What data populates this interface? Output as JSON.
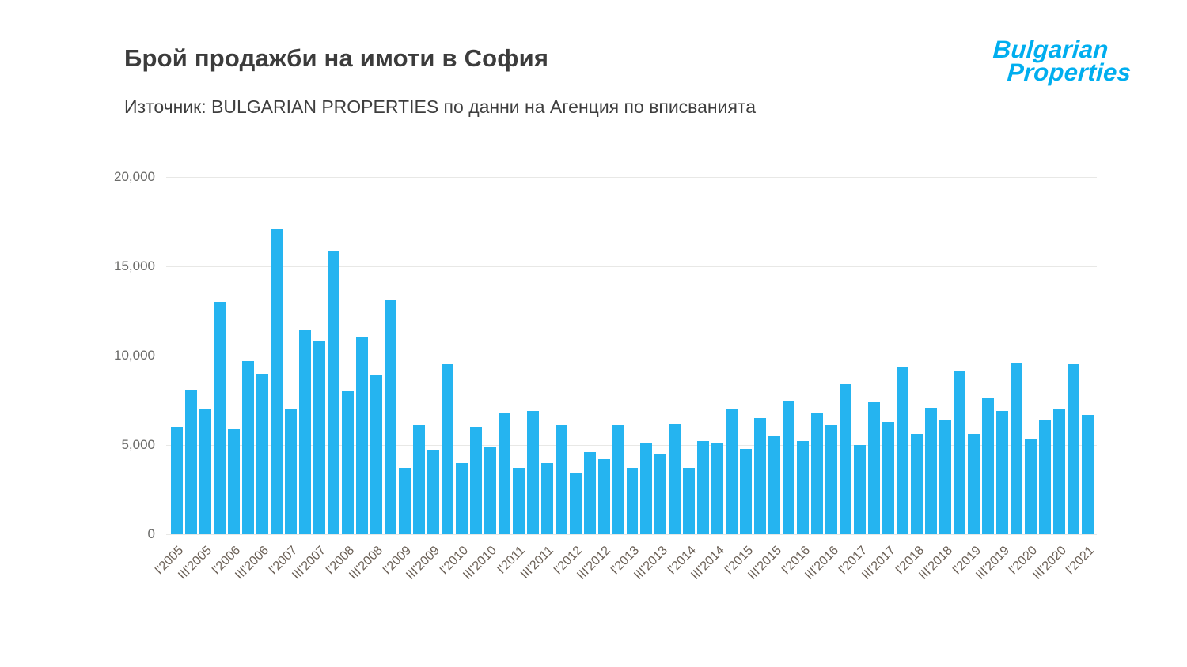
{
  "header": {
    "title": "Брой продажби на имоти в София",
    "subtitle": "Източник: BULGARIAN PROPERTIES по данни на Агенция по вписванията"
  },
  "logo": {
    "line1": "Bulgarian",
    "line2": "Properties"
  },
  "colors": {
    "bar": "#25b4f0",
    "grid": "#e8e8e6",
    "axis_text": "#6b6056",
    "title": "#3c3c3c",
    "logo_blue": "#00aeef"
  },
  "chart_data": {
    "type": "bar",
    "title": "Брой продажби на имоти в София",
    "xlabel": "",
    "ylabel": "",
    "ylim": [
      0,
      20000
    ],
    "yticks": [
      0,
      5000,
      10000,
      15000,
      20000
    ],
    "ytick_labels": [
      "0",
      "5,000",
      "10,000",
      "15,000",
      "20,000"
    ],
    "grid": "horizontal",
    "legend": "none",
    "bars": [
      {
        "label": "I'2005",
        "value": 6000
      },
      {
        "label": "",
        "value": 8100
      },
      {
        "label": "III'2005",
        "value": 7000
      },
      {
        "label": "",
        "value": 13000
      },
      {
        "label": "I'2006",
        "value": 5900
      },
      {
        "label": "",
        "value": 9700
      },
      {
        "label": "III'2006",
        "value": 9000
      },
      {
        "label": "",
        "value": 17100
      },
      {
        "label": "I'2007",
        "value": 7000
      },
      {
        "label": "",
        "value": 11400
      },
      {
        "label": "III'2007",
        "value": 10800
      },
      {
        "label": "",
        "value": 15900
      },
      {
        "label": "I'2008",
        "value": 8000
      },
      {
        "label": "",
        "value": 11000
      },
      {
        "label": "III'2008",
        "value": 8900
      },
      {
        "label": "",
        "value": 13100
      },
      {
        "label": "I'2009",
        "value": 3700
      },
      {
        "label": "",
        "value": 6100
      },
      {
        "label": "III'2009",
        "value": 4700
      },
      {
        "label": "",
        "value": 9500
      },
      {
        "label": "I'2010",
        "value": 4000
      },
      {
        "label": "",
        "value": 6000
      },
      {
        "label": "III'2010",
        "value": 4900
      },
      {
        "label": "",
        "value": 6800
      },
      {
        "label": "I'2011",
        "value": 3700
      },
      {
        "label": "",
        "value": 6900
      },
      {
        "label": "III'2011",
        "value": 4000
      },
      {
        "label": "",
        "value": 6100
      },
      {
        "label": "I'2012",
        "value": 3400
      },
      {
        "label": "",
        "value": 4600
      },
      {
        "label": "III'2012",
        "value": 4200
      },
      {
        "label": "",
        "value": 6100
      },
      {
        "label": "I'2013",
        "value": 3700
      },
      {
        "label": "",
        "value": 5100
      },
      {
        "label": "III'2013",
        "value": 4500
      },
      {
        "label": "",
        "value": 6200
      },
      {
        "label": "I'2014",
        "value": 3700
      },
      {
        "label": "",
        "value": 5200
      },
      {
        "label": "III'2014",
        "value": 5100
      },
      {
        "label": "",
        "value": 7000
      },
      {
        "label": "I'2015",
        "value": 4800
      },
      {
        "label": "",
        "value": 6500
      },
      {
        "label": "III'2015",
        "value": 5500
      },
      {
        "label": "",
        "value": 7500
      },
      {
        "label": "I'2016",
        "value": 5200
      },
      {
        "label": "",
        "value": 6800
      },
      {
        "label": "III'2016",
        "value": 6100
      },
      {
        "label": "",
        "value": 8400
      },
      {
        "label": "I'2017",
        "value": 5000
      },
      {
        "label": "",
        "value": 7400
      },
      {
        "label": "III'2017",
        "value": 6300
      },
      {
        "label": "",
        "value": 9400
      },
      {
        "label": "I'2018",
        "value": 5600
      },
      {
        "label": "",
        "value": 7100
      },
      {
        "label": "III'2018",
        "value": 6400
      },
      {
        "label": "",
        "value": 9100
      },
      {
        "label": "I'2019",
        "value": 5600
      },
      {
        "label": "",
        "value": 7600
      },
      {
        "label": "III'2019",
        "value": 6900
      },
      {
        "label": "",
        "value": 9600
      },
      {
        "label": "I'2020",
        "value": 5300
      },
      {
        "label": "",
        "value": 6400
      },
      {
        "label": "III'2020",
        "value": 7000
      },
      {
        "label": "",
        "value": 9500
      },
      {
        "label": "I'2021",
        "value": 6700
      }
    ]
  }
}
